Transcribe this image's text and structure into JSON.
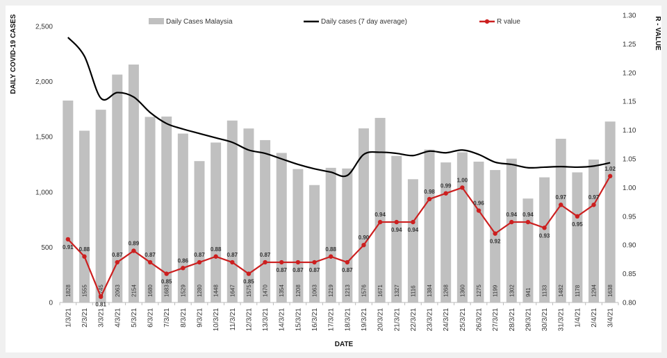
{
  "chart_data": {
    "type": "bar+line",
    "title": "",
    "xlabel": "DATE",
    "ylabel": "DAILY COVID-19 CASES",
    "y2label": "R - VALUE",
    "ylim": [
      0,
      2600
    ],
    "yticks": [
      "0",
      "500",
      "1,000",
      "1,500",
      "2,000",
      "2,500"
    ],
    "y2lim": [
      0.8,
      1.3
    ],
    "y2ticks": [
      "0.80",
      "0.85",
      "0.90",
      "0.95",
      "1.00",
      "1.05",
      "1.10",
      "1.15",
      "1.20",
      "1.25",
      "1.30"
    ],
    "categories": [
      "1/3/21",
      "2/3/21",
      "3/3/21",
      "4/3/21",
      "5/3/21",
      "6/3/21",
      "7/3/21",
      "8/3/21",
      "9/3/21",
      "10/3/21",
      "11/3/21",
      "12/3/21",
      "13/3/21",
      "14/3/21",
      "15/3/21",
      "16/3/21",
      "17/3/21",
      "18/3/21",
      "19/3/21",
      "20/3/21",
      "21/3/21",
      "22/3/21",
      "23/3/21",
      "24/3/21",
      "25/3/21",
      "26/3/21",
      "27/3/21",
      "28/3/21",
      "29/3/21",
      "30/3/21",
      "31/3/21",
      "1/4/21",
      "2/4/21",
      "3/4/21"
    ],
    "legend": {
      "bars": "Daily Cases Malaysia",
      "avg": "Daily cases (7 day average)",
      "r": "R value"
    },
    "series": [
      {
        "name": "Daily Cases Malaysia",
        "axis": "left",
        "kind": "bar",
        "color": "#c0c0c0",
        "values": [
          1828,
          1555,
          1745,
          2063,
          2154,
          1680,
          1683,
          1529,
          1280,
          1448,
          1647,
          1575,
          1470,
          1354,
          1208,
          1063,
          1219,
          1213,
          1576,
          1671,
          1327,
          1116,
          1384,
          1268,
          1360,
          1275,
          1199,
          1302,
          941,
          1133,
          1482,
          1178,
          1294,
          1638
        ],
        "labels": [
          "1828",
          "1555",
          "1745",
          "2063",
          "2154",
          "1680",
          "1683",
          "1529",
          "1280",
          "1448",
          "1647",
          "1575",
          "1470",
          "1354",
          "1208",
          "1063",
          "1219",
          "1213",
          "1576",
          "1671",
          "1327",
          "1116",
          "1384",
          "1268",
          "1360",
          "1275",
          "1199",
          "1302",
          "941",
          "1133",
          "1482",
          "1178",
          "1294",
          "1638"
        ]
      },
      {
        "name": "Daily cases (7 day average)",
        "axis": "left",
        "kind": "line",
        "color": "#000000",
        "values": [
          2400,
          2230,
          1850,
          1900,
          1860,
          1720,
          1620,
          1570,
          1530,
          1490,
          1450,
          1380,
          1350,
          1300,
          1250,
          1210,
          1180,
          1150,
          1340,
          1360,
          1350,
          1330,
          1370,
          1355,
          1380,
          1340,
          1270,
          1250,
          1220,
          1225,
          1230,
          1225,
          1235,
          1265
        ]
      },
      {
        "name": "R value",
        "axis": "right",
        "kind": "line",
        "color": "#cc1f1f",
        "values": [
          0.91,
          0.88,
          0.81,
          0.87,
          0.89,
          0.87,
          0.85,
          0.86,
          0.87,
          0.88,
          0.87,
          0.85,
          0.87,
          0.87,
          0.87,
          0.87,
          0.88,
          0.87,
          0.9,
          0.94,
          0.94,
          0.94,
          0.98,
          0.99,
          1.0,
          0.96,
          0.92,
          0.94,
          0.94,
          0.93,
          0.97,
          0.95,
          0.97,
          1.02
        ],
        "labels": [
          "0.91",
          "0.88",
          "0.81",
          "0.87",
          "0.89",
          "0.87",
          "0.85",
          "0.86",
          "0.87",
          "0.88",
          "0.87",
          "0.85",
          "0.87",
          "0.87",
          "0.87",
          "0.87",
          "0.88",
          "0.87",
          "0.90",
          "0.94",
          "0.94",
          "0.94",
          "0.98",
          "0.99",
          "1.00",
          "0.96",
          "0.92",
          "0.94",
          "0.94",
          "0.93",
          "0.97",
          "0.95",
          "0.97",
          "1.02"
        ]
      }
    ]
  }
}
